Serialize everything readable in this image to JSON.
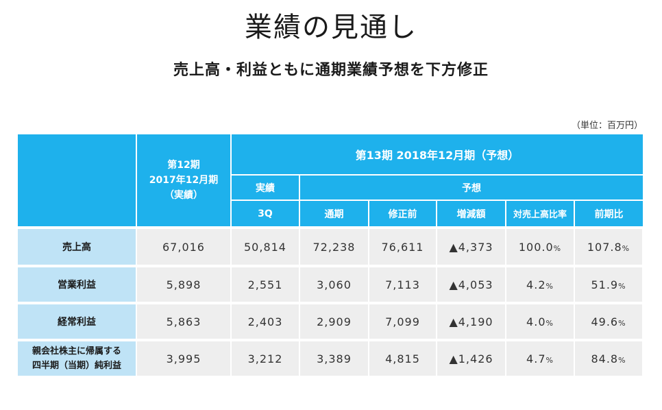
{
  "title": "業績の見通し",
  "subtitle": "売上高・利益ともに通期業績予想を下方修正",
  "unit_note": "（単位：百万円）",
  "header": {
    "period12_line1": "第12期",
    "period12_line2": "2017年12月期",
    "period12_line3": "（実績）",
    "period13": "第13期 2018年12月期（予想）",
    "actual": "実績",
    "forecast": "予想",
    "q3": "3Q",
    "full_year": "通期",
    "before_revision": "修正前",
    "change": "増減額",
    "ratio_to_sales": "対売上高比率",
    "yoy": "前期比"
  },
  "rows": [
    {
      "label": "売上高",
      "p12": "67,016",
      "q3": "50,814",
      "full": "72,238",
      "before": "76,611",
      "change": "▲4,373",
      "ratio": "100.0",
      "yoy": "107.8"
    },
    {
      "label": "営業利益",
      "p12": "5,898",
      "q3": "2,551",
      "full": "3,060",
      "before": "7,113",
      "change": "▲4,053",
      "ratio": "4.2",
      "yoy": "51.9"
    },
    {
      "label": "経常利益",
      "p12": "5,863",
      "q3": "2,403",
      "full": "2,909",
      "before": "7,099",
      "change": "▲4,190",
      "ratio": "4.0",
      "yoy": "49.6"
    },
    {
      "label1": "親会社株主に帰属する",
      "label2": "四半期（当期）純利益",
      "p12": "3,995",
      "q3": "3,212",
      "full": "3,389",
      "before": "4,815",
      "change": "▲1,426",
      "ratio": "4.7",
      "yoy": "84.8"
    }
  ],
  "percent_sign": "%"
}
